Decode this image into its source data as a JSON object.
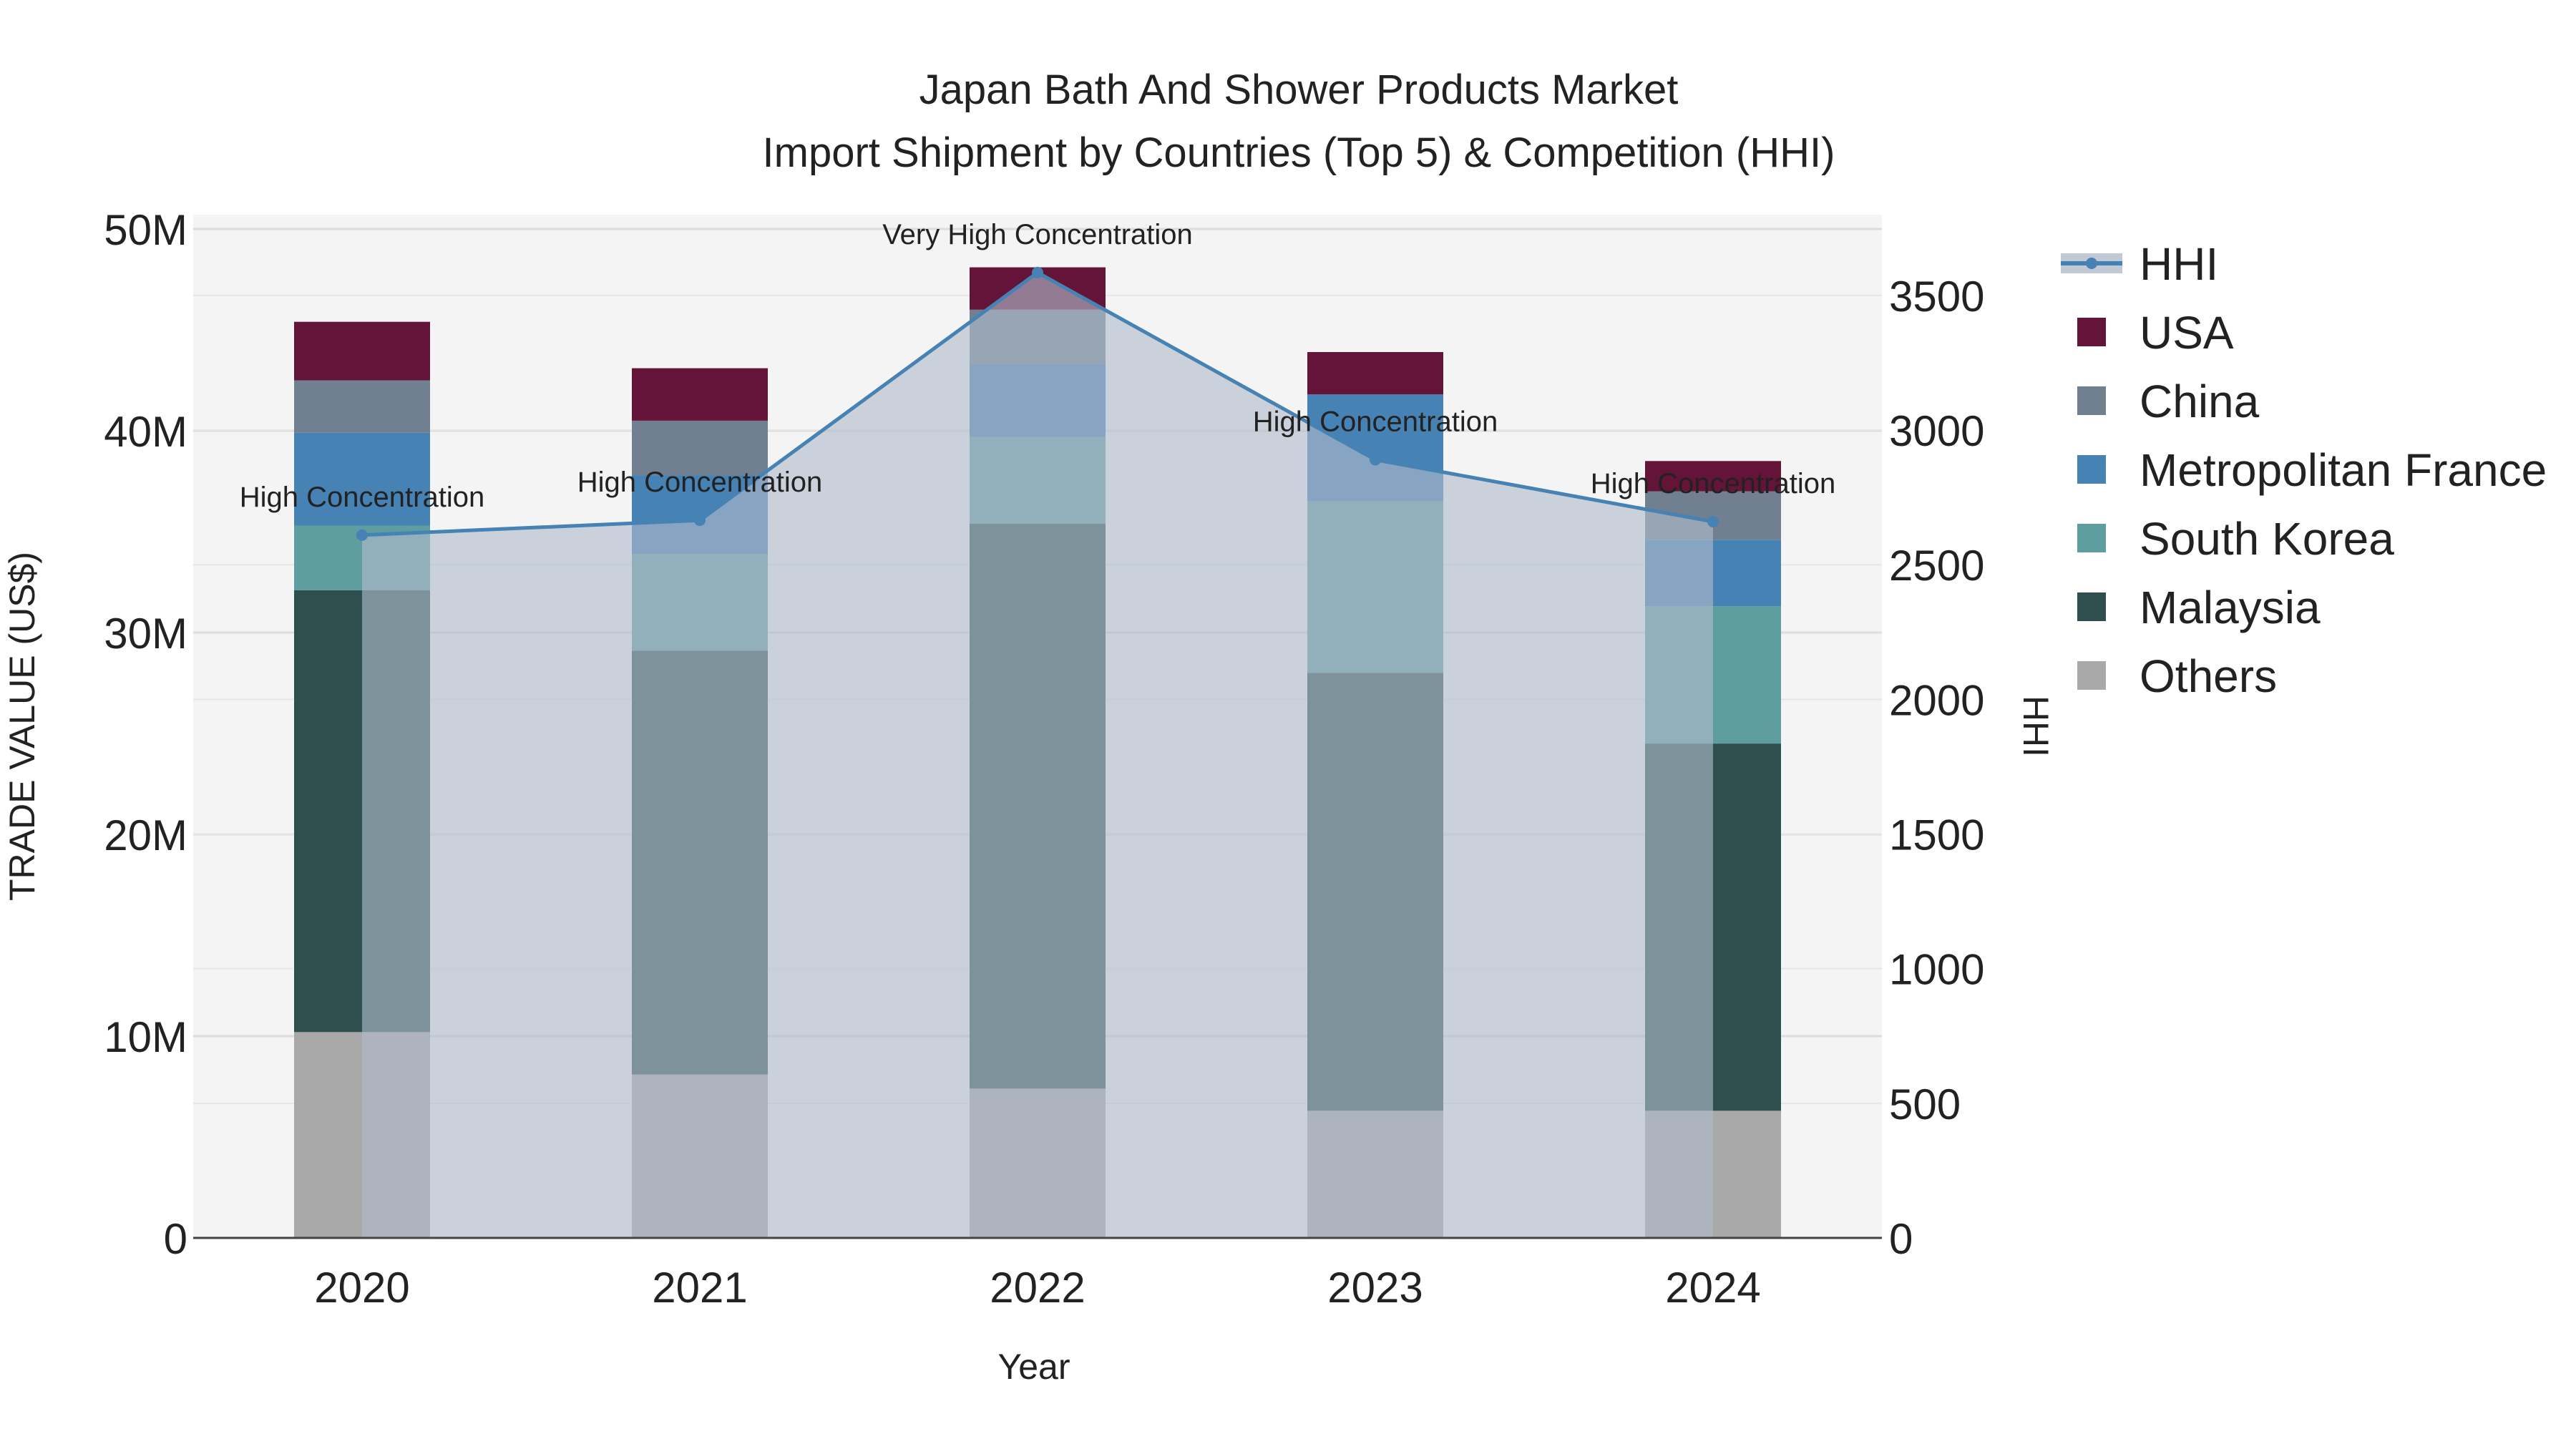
{
  "chart_data": {
    "type": "bar",
    "stacked": true,
    "title": "Japan Bath And Shower Products Market",
    "subtitle": "Import Shipment by Countries (Top 5) & Competition (HHI)",
    "xlabel": "Year",
    "ylabel": "TRADE VALUE (US$)",
    "y2label": "HHI",
    "categories": [
      "2020",
      "2021",
      "2022",
      "2023",
      "2024"
    ],
    "ylim": [
      0,
      50000000
    ],
    "y2lim": [
      0,
      3800
    ],
    "y_ticks": [
      0,
      10000000,
      20000000,
      30000000,
      40000000,
      50000000
    ],
    "y_tick_labels": [
      "0",
      "10M",
      "20M",
      "30M",
      "40M",
      "50M"
    ],
    "y2_ticks": [
      0,
      500,
      1000,
      1500,
      2000,
      2500,
      3000,
      3500
    ],
    "y2_tick_labels": [
      "0",
      "500",
      "1000",
      "1500",
      "2000",
      "2500",
      "3000",
      "3500"
    ],
    "series": [
      {
        "name": "Others",
        "color": "#a9a9a9",
        "values": [
          10200000,
          8100000,
          7400000,
          6300000,
          6300000
        ]
      },
      {
        "name": "Malaysia",
        "color": "#2f4f4f",
        "values": [
          21900000,
          21000000,
          28000000,
          21700000,
          18200000
        ]
      },
      {
        "name": "South Korea",
        "color": "#5f9ea0",
        "values": [
          3200000,
          4800000,
          4300000,
          8500000,
          6800000
        ]
      },
      {
        "name": "Metropolitan France",
        "color": "#4682b4",
        "values": [
          4600000,
          3900000,
          3600000,
          5300000,
          3300000
        ]
      },
      {
        "name": "China",
        "color": "#708090",
        "values": [
          2600000,
          2700000,
          2700000,
          0,
          2400000
        ]
      },
      {
        "name": "USA",
        "color": "#641438",
        "values": [
          2900000,
          2600000,
          2100000,
          2100000,
          1500000
        ]
      }
    ],
    "hhi": {
      "name": "HHI",
      "color": "#4682b4",
      "fill_color": "#b0bccb",
      "values": [
        2610,
        2665,
        3585,
        2890,
        2660
      ],
      "labels": [
        "High Concentration",
        "High Concentration",
        "Very High Concentration",
        "High Concentration",
        "High Concentration"
      ]
    },
    "legend_order": [
      "HHI",
      "USA",
      "China",
      "Metropolitan France",
      "South Korea",
      "Malaysia",
      "Others"
    ],
    "legend_position": "right",
    "grid": true
  }
}
